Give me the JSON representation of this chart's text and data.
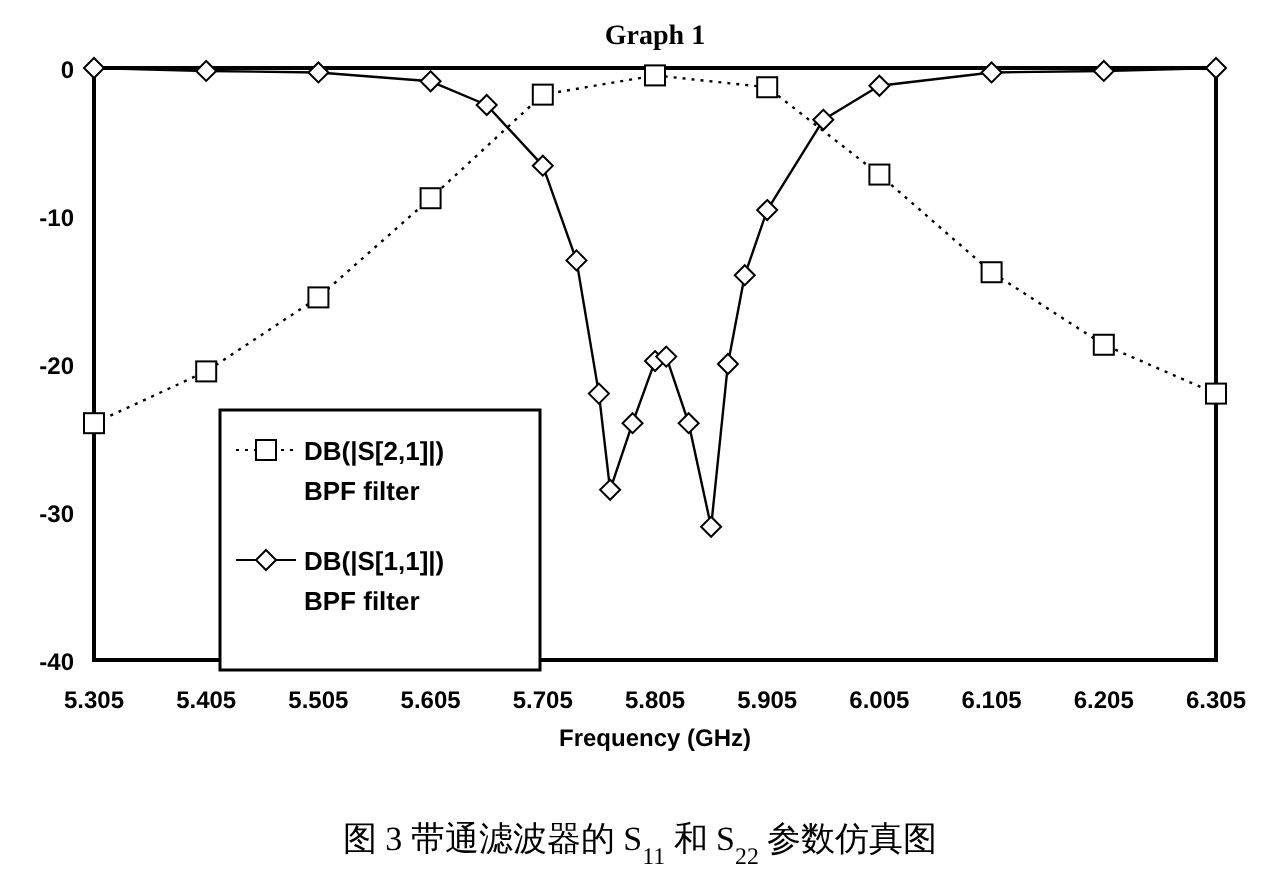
{
  "chart_data": {
    "type": "line",
    "title": "Graph 1",
    "xlabel": "Frequency (GHz)",
    "annotations": [
      "图 3 带通滤波器的 S$_{11}$ 和 S$_{22}$ 参数仿真图"
    ],
    "xlim": [
      5.305,
      6.305
    ],
    "xticks": [
      5.305,
      5.405,
      5.505,
      5.605,
      5.705,
      5.805,
      5.905,
      6.005,
      6.105,
      6.205,
      6.305
    ],
    "ylim": [
      -40,
      0
    ],
    "yticks": [
      0,
      -10,
      -20,
      -30,
      -40
    ],
    "grid": false,
    "legend": "bottom left",
    "series": [
      {
        "name": "DB(|S[2,1]|)\nBPF filter",
        "color": "#000000",
        "marker": "square",
        "line_style": "dotted",
        "x": [
          5.305,
          5.405,
          5.505,
          5.605,
          5.705,
          5.805,
          5.905,
          6.005,
          6.105,
          6.205,
          6.305
        ],
        "values": [
          -24,
          -20.5,
          -15.5,
          -8.8,
          -1.8,
          -0.5,
          -1.3,
          -7.2,
          -13.8,
          -18.7,
          -22
        ]
      },
      {
        "name": "DB(|S[1,1]|)\nBPF filter",
        "color": "#000000",
        "marker": "diamond",
        "line_style": "solid",
        "x": [
          5.305,
          5.405,
          5.505,
          5.605,
          5.655,
          5.705,
          5.735,
          5.755,
          5.765,
          5.785,
          5.805,
          5.815,
          5.835,
          5.855,
          5.87,
          5.885,
          5.905,
          5.955,
          6.005,
          6.105,
          6.205,
          6.305
        ],
        "values": [
          0,
          -0.2,
          -0.3,
          -0.9,
          -2.5,
          -6.6,
          -13,
          -22,
          -28.5,
          -24,
          -19.8,
          -19.5,
          -24,
          -31,
          -20,
          -14,
          -9.6,
          -3.5,
          -1.2,
          -0.3,
          -0.2,
          0
        ]
      }
    ]
  }
}
